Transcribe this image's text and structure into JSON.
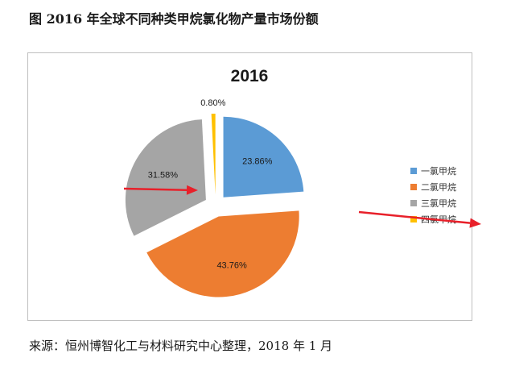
{
  "figure": {
    "title": "图 2016 年全球不同种类甲烷氯化物产量市场份额",
    "source": "来源：恒州博智化工与材料研究中心整理，2018 年 1 月"
  },
  "chart_data": {
    "type": "pie",
    "title": "2016",
    "exploded": true,
    "legend_position": "right",
    "series": [
      {
        "name": "一氯甲烷",
        "value": 23.86,
        "label": "23.86%",
        "color": "#5b9bd5"
      },
      {
        "name": "二氯甲烷",
        "value": 43.76,
        "label": "43.76%",
        "color": "#ed7d31"
      },
      {
        "name": "三氯甲烷",
        "value": 31.58,
        "label": "31.58%",
        "color": "#a5a5a5"
      },
      {
        "name": "四氯甲烷",
        "value": 0.8,
        "label": "0.80%",
        "color": "#ffc000"
      }
    ],
    "annotation_color": "#e8202a"
  }
}
